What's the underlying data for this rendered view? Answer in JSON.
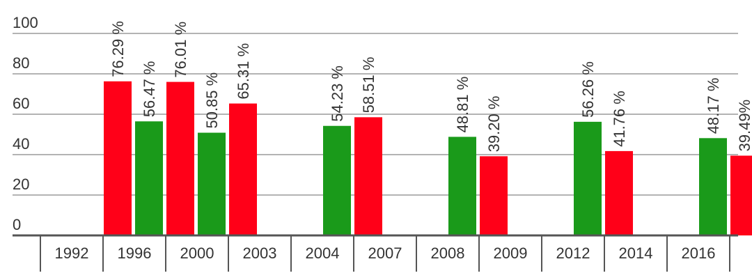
{
  "chart_data": {
    "type": "bar",
    "ylim": [
      0,
      100
    ],
    "yticks": [
      0,
      20,
      40,
      60,
      80,
      100
    ],
    "grid": true,
    "categories": [
      "1992",
      "1996",
      "2000",
      "2003",
      "2004",
      "2007",
      "2008",
      "2009",
      "2012",
      "2014",
      "2016"
    ],
    "bars": [
      {
        "slot": 1,
        "color": "#ff0018",
        "value": 76.29,
        "label": "76.29 %"
      },
      {
        "slot": 2,
        "color": "#1a9a1a",
        "value": 56.47,
        "label": "56.47 %"
      },
      {
        "slot": 3,
        "color": "#ff0018",
        "value": 76.01,
        "label": "76.01 %"
      },
      {
        "slot": 4,
        "color": "#1a9a1a",
        "value": 50.85,
        "label": "50.85 %"
      },
      {
        "slot": 5,
        "color": "#ff0018",
        "value": 65.31,
        "label": "65.31 %"
      },
      {
        "slot": 8,
        "color": "#1a9a1a",
        "value": 54.23,
        "label": "54.23 %"
      },
      {
        "slot": 9,
        "color": "#ff0018",
        "value": 58.51,
        "label": "58.51 %"
      },
      {
        "slot": 12,
        "color": "#1a9a1a",
        "value": 48.81,
        "label": "48.81 %"
      },
      {
        "slot": 13,
        "color": "#ff0018",
        "value": 39.2,
        "label": "39.20 %"
      },
      {
        "slot": 16,
        "color": "#1a9a1a",
        "value": 56.26,
        "label": "56.26 %"
      },
      {
        "slot": 17,
        "color": "#ff0018",
        "value": 41.76,
        "label": "41.76 %"
      },
      {
        "slot": 20,
        "color": "#1a9a1a",
        "value": 48.17,
        "label": "48.17 %"
      },
      {
        "slot": 21,
        "color": "#ff0018",
        "value": 39.49,
        "label": "39.49%"
      }
    ]
  }
}
